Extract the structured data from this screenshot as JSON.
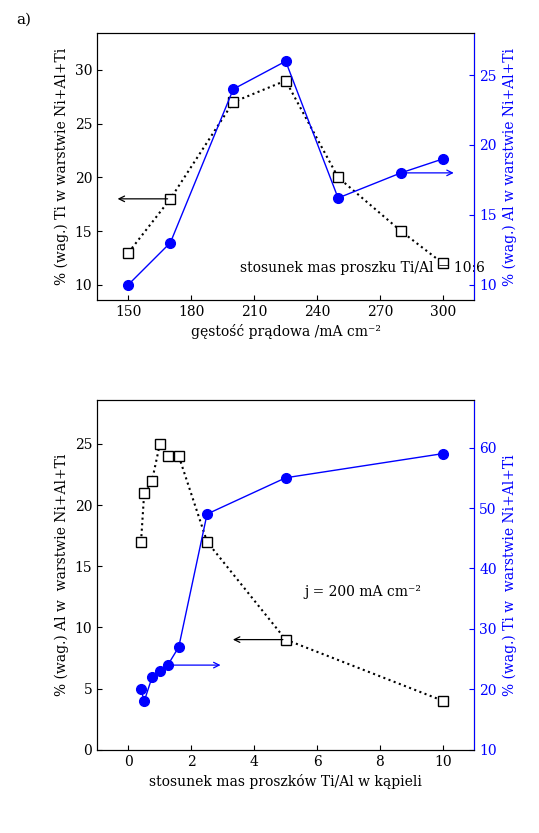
{
  "panel_label": "a)",
  "chart_data": [
    {
      "type": "line",
      "x_label": "gęstość prądowa /mA cm⁻²",
      "y_label": "% (wag.) Ti w warstwie Ni+Al+Ti",
      "y2_label": "% (wag.) Al w warstwie Ni+Al+Ti",
      "annotation": "stosunek mas proszku Ti/Al = 10:6",
      "xlim": [
        135,
        315
      ],
      "xticks": [
        150,
        180,
        210,
        240,
        270,
        300
      ],
      "ylim": [
        8.6,
        33.4
      ],
      "yticks": [
        10,
        15,
        20,
        25,
        30
      ],
      "y2lim": [
        8.9,
        28
      ],
      "y2ticks": [
        10,
        15,
        20,
        25
      ],
      "x": [
        150,
        170,
        200,
        225,
        250,
        280,
        300
      ],
      "series": [
        {
          "name": "Ti",
          "color": "#000000",
          "marker": "square",
          "line_style": "dotted",
          "values": [
            13,
            18,
            27,
            29,
            20,
            15,
            12
          ]
        },
        {
          "name": "Al",
          "color": "#0000ff",
          "marker": "circle",
          "line_style": "solid",
          "axis": "y2",
          "values": [
            10,
            13,
            24,
            26,
            16.2,
            18,
            19
          ]
        }
      ]
    },
    {
      "type": "line",
      "x_label": "stosunek mas proszków Ti/Al w kąpieli",
      "y_label": "% (wag.) Al w  warstwie Ni+Al+Ti",
      "y2_label": "% (wag.) Ti w  warstwie Ni+Al+Ti",
      "annotation": "j = 200 mA cm⁻²",
      "xlim": [
        -1,
        11
      ],
      "xticks": [
        0,
        2,
        4,
        6,
        8,
        10
      ],
      "ylim": [
        0,
        28.6
      ],
      "yticks": [
        0,
        5,
        10,
        15,
        20,
        25
      ],
      "y2lim": [
        10,
        67.9
      ],
      "y2ticks": [
        10,
        20,
        30,
        40,
        50,
        60
      ],
      "x": [
        0.4,
        0.5,
        0.75,
        1,
        1.25,
        1.6,
        2.5,
        5,
        10
      ],
      "series": [
        {
          "name": "Al",
          "color": "#000000",
          "marker": "square",
          "line_style": "dotted",
          "values": [
            17,
            21,
            22,
            25,
            24,
            24,
            17,
            9,
            4
          ]
        },
        {
          "name": "Ti",
          "color": "#0000ff",
          "marker": "circle",
          "line_style": "solid",
          "axis": "y2",
          "values": [
            20,
            18,
            22,
            23,
            24,
            27,
            49,
            55,
            59
          ]
        }
      ]
    }
  ]
}
